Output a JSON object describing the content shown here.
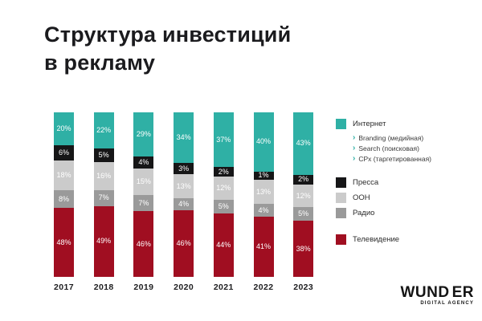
{
  "title": {
    "line1": "Структура инвестиций",
    "line2": "в рекламу"
  },
  "chart_data": {
    "type": "bar",
    "stacked": true,
    "unit": "%",
    "grid": false,
    "legend_position": "right",
    "categories": [
      "2017",
      "2018",
      "2019",
      "2020",
      "2021",
      "2022",
      "2023"
    ],
    "series": [
      {
        "name": "Интернет",
        "color": "#2FB0A5",
        "values": [
          20,
          22,
          29,
          34,
          37,
          40,
          43
        ]
      },
      {
        "name": "Пресса",
        "color": "#161617",
        "values": [
          6,
          5,
          4,
          3,
          2,
          1,
          2
        ]
      },
      {
        "name": "OOH",
        "color": "#CBCBCB",
        "values": [
          18,
          16,
          15,
          13,
          12,
          13,
          12
        ]
      },
      {
        "name": "Радио",
        "color": "#9A9A9A",
        "values": [
          8,
          7,
          7,
          4,
          5,
          4,
          5
        ]
      },
      {
        "name": "Телевидение",
        "color": "#A00E21",
        "values": [
          48,
          49,
          46,
          46,
          44,
          41,
          38
        ]
      }
    ]
  },
  "legend": {
    "chevron_color": "#2FB0A5",
    "items": [
      {
        "label": "Интернет",
        "color": "#2FB0A5",
        "sub_items": [
          "Branding (медийная)",
          "Search (поисковая)",
          "CPx (таргетированная)"
        ],
        "gap_after": 16
      },
      {
        "label": "Пресса",
        "color": "#161617",
        "gap_after": 4
      },
      {
        "label": "OOH",
        "color": "#CBCBCB",
        "gap_after": 4
      },
      {
        "label": "Радио",
        "color": "#9A9A9A",
        "gap_after": 18
      },
      {
        "label": "Телевидение",
        "color": "#A00E21",
        "gap_after": 0
      }
    ]
  },
  "logo": {
    "brand_prefix": "WUND",
    "brand_suffix": "ER",
    "tagline": "DIGITAL AGENCY"
  }
}
